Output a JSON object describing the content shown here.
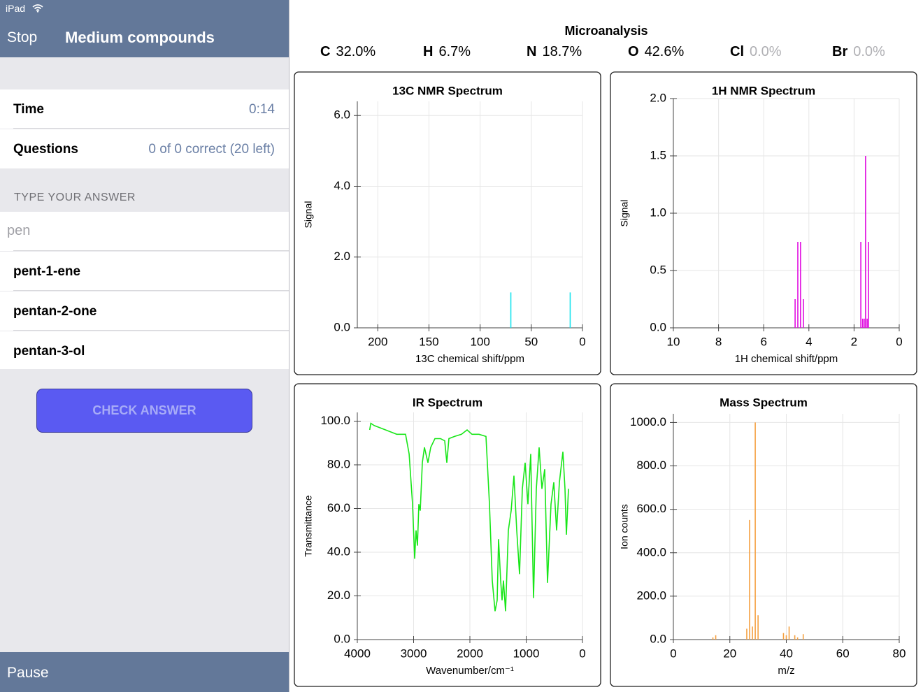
{
  "status_bar": {
    "device": "iPad"
  },
  "nav": {
    "back": "Stop",
    "title": "Medium compounds"
  },
  "rows": [
    {
      "label": "Time",
      "value": "0:14"
    },
    {
      "label": "Questions",
      "value": "0 of 0 correct (20 left)"
    }
  ],
  "answer": {
    "section": "TYPE YOUR ANSWER",
    "input": "pen",
    "suggestions": [
      "pent-1-ene",
      "pentan-2-one",
      "pentan-3-ol"
    ]
  },
  "button": "CHECK ANSWER",
  "toolbar": {
    "pause": "Pause"
  },
  "microanalysis": {
    "title": "Microanalysis",
    "elements": [
      {
        "symbol": "C",
        "value": "32.0%"
      },
      {
        "symbol": "H",
        "value": "6.7%"
      },
      {
        "symbol": "N",
        "value": "18.7%"
      },
      {
        "symbol": "O",
        "value": "42.6%"
      },
      {
        "symbol": "Cl",
        "value": "0.0%"
      },
      {
        "symbol": "Br",
        "value": "0.0%"
      }
    ]
  },
  "chart_data": [
    {
      "type": "stem",
      "title": "13C NMR Spectrum",
      "x_label": "13C chemical shift/ppm",
      "y_label": "Signal",
      "xlim": [
        220,
        0
      ],
      "xticks": [
        200,
        150,
        100,
        50,
        0
      ],
      "ylim": [
        0,
        6.4
      ],
      "yticks": [
        {
          "value": 0,
          "label": "0.0"
        },
        {
          "value": 2,
          "label": "2.0"
        },
        {
          "value": 4,
          "label": "4.0"
        },
        {
          "value": 6,
          "label": "6.0"
        }
      ],
      "grid": true,
      "series": [
        {
          "color": "#19e3ee",
          "x": [
            70,
            12
          ],
          "values": [
            1.0,
            1.0
          ]
        }
      ]
    },
    {
      "type": "stem",
      "title": "1H NMR Spectrum",
      "x_label": "1H chemical shift/ppm",
      "y_label": "Signal",
      "xlim": [
        10,
        0
      ],
      "xticks": [
        10,
        8,
        6,
        4,
        2,
        0
      ],
      "ylim": [
        0,
        2
      ],
      "yticks": [
        {
          "value": 0,
          "label": "0.0"
        },
        {
          "value": 0.5,
          "label": "0.5"
        },
        {
          "value": 1,
          "label": "1.0"
        },
        {
          "value": 1.5,
          "label": "1.5"
        },
        {
          "value": 2,
          "label": "2.0"
        }
      ],
      "grid": true,
      "series": [
        {
          "color": "#e010e0",
          "x": [
            4.61,
            4.49,
            4.37,
            4.24,
            1.7,
            1.62,
            1.55,
            1.49,
            1.42,
            1.36
          ],
          "values": [
            0.25,
            0.75,
            0.75,
            0.25,
            0.75,
            0.08,
            0.08,
            1.5,
            0.08,
            0.75
          ]
        }
      ]
    },
    {
      "type": "line",
      "title": "IR Spectrum",
      "x_label": "Wavenumber/cm⁻¹",
      "y_label": "Transmittance",
      "xlim": [
        4000,
        0
      ],
      "xticks": [
        4000,
        3000,
        2000,
        1000,
        0
      ],
      "ylim": [
        0,
        104
      ],
      "yticks": [
        {
          "value": 0,
          "label": "0.0"
        },
        {
          "value": 20,
          "label": "20.0"
        },
        {
          "value": 40,
          "label": "40.0"
        },
        {
          "value": 60,
          "label": "60.0"
        },
        {
          "value": 80,
          "label": "80.0"
        },
        {
          "value": 100,
          "label": "100.0"
        }
      ],
      "grid": true,
      "series": [
        {
          "color": "#19e619",
          "x": [
            3780,
            3760,
            3700,
            3600,
            3500,
            3400,
            3300,
            3143,
            3080,
            3019,
            2981,
            2957,
            2932,
            2907,
            2882,
            2845,
            2807,
            2745,
            2696,
            2621,
            2522,
            2447,
            2410,
            2373,
            2273,
            2149,
            2050,
            1963,
            1839,
            1714,
            1652,
            1602,
            1553,
            1516,
            1491,
            1453,
            1429,
            1404,
            1366,
            1317,
            1267,
            1217,
            1168,
            1118,
            1068,
            1019,
            969,
            919,
            870,
            820,
            770,
            720,
            671,
            621,
            559,
            509,
            460,
            410,
            348,
            311,
            286,
            248
          ],
          "values": [
            96,
            99,
            98,
            97,
            96,
            95,
            94,
            94,
            85,
            62,
            37,
            50,
            43,
            62,
            59,
            81,
            88,
            81,
            88,
            92,
            92,
            91,
            81,
            92,
            93,
            94,
            96,
            94,
            94,
            93,
            62,
            27,
            13,
            18,
            46,
            27,
            18,
            27,
            13,
            50,
            59,
            75,
            50,
            30,
            69,
            81,
            62,
            85,
            19,
            69,
            88,
            69,
            78,
            26,
            62,
            72,
            50,
            72,
            86,
            69,
            48,
            69
          ]
        }
      ]
    },
    {
      "type": "stem",
      "title": "Mass Spectrum",
      "x_label": "m/z",
      "y_label": "Ion counts",
      "xlim": [
        0,
        80
      ],
      "xticks": [
        0,
        20,
        40,
        60,
        80
      ],
      "ylim": [
        0,
        1040
      ],
      "yticks": [
        {
          "value": 0,
          "label": "0.0"
        },
        {
          "value": 200,
          "label": "200.0"
        },
        {
          "value": 400,
          "label": "400.0"
        },
        {
          "value": 600,
          "label": "600.0"
        },
        {
          "value": 800,
          "label": "800.0"
        },
        {
          "value": 1000,
          "label": "1000.0"
        }
      ],
      "grid": true,
      "series": [
        {
          "color": "#f5a040",
          "x": [
            14,
            15,
            26,
            27,
            28,
            29,
            30,
            39,
            40,
            41,
            43,
            44,
            46
          ],
          "values": [
            10,
            20,
            50,
            551,
            60,
            1000,
            112,
            30,
            20,
            60,
            20,
            10,
            25
          ]
        }
      ]
    }
  ]
}
